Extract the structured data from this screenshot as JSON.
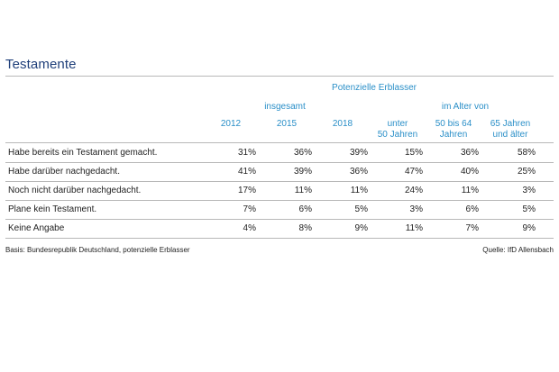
{
  "title": "Testamente",
  "header": {
    "group_label": "Potenzielle Erblasser",
    "insgesamt_label": "insgesamt",
    "alter_label": "im Alter von",
    "columns": [
      "2012",
      "2015",
      "2018",
      "unter\n50 Jahren",
      "50 bis 64\nJahren",
      "65 Jahren\nund älter"
    ]
  },
  "rows": [
    {
      "label": "Habe bereits ein Testament gemacht.",
      "values": [
        "31%",
        "36%",
        "39%",
        "15%",
        "36%",
        "58%"
      ]
    },
    {
      "label": "Habe darüber nachgedacht.",
      "values": [
        "41%",
        "39%",
        "36%",
        "47%",
        "40%",
        "25%"
      ]
    },
    {
      "label": "Noch nicht darüber nachgedacht.",
      "values": [
        "17%",
        "11%",
        "11%",
        "24%",
        "11%",
        "3%"
      ]
    },
    {
      "label": "Plane kein Testament.",
      "values": [
        "7%",
        "6%",
        "5%",
        "3%",
        "6%",
        "5%"
      ]
    },
    {
      "label": "Keine Angabe",
      "values": [
        "4%",
        "8%",
        "9%",
        "11%",
        "7%",
        "9%"
      ]
    }
  ],
  "footer": {
    "basis": "Basis: Bundesrepublik Deutschland, potenzielle Erblasser",
    "source": "Quelle: IfD Allensbach"
  },
  "colors": {
    "title": "#1f3f7a",
    "header": "#2a8fc8",
    "rule": "#b8b8b8"
  }
}
